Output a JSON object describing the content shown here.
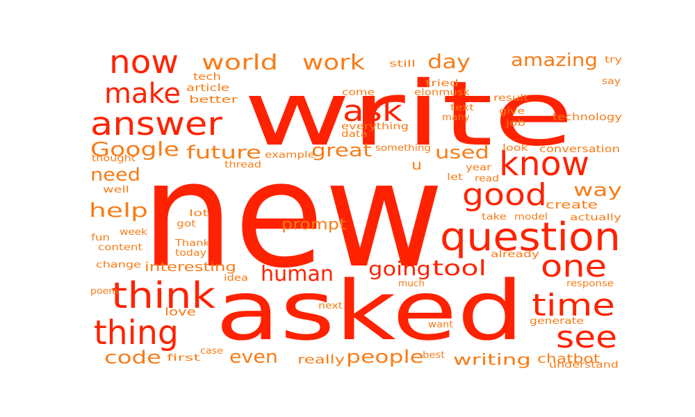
{
  "colors": {
    "background": "#ffffff",
    "red": "#ff2200",
    "orange": "#f77c17"
  },
  "words": [
    {
      "text": "new",
      "color": "red"
    },
    {
      "text": "write",
      "color": "red"
    },
    {
      "text": "asked",
      "color": "red"
    },
    {
      "text": "question",
      "color": "red"
    },
    {
      "text": "know",
      "color": "red"
    },
    {
      "text": "think",
      "color": "red"
    },
    {
      "text": "thing",
      "color": "red"
    },
    {
      "text": "time",
      "color": "red"
    },
    {
      "text": "one",
      "color": "red"
    },
    {
      "text": "see",
      "color": "red"
    },
    {
      "text": "now",
      "color": "red"
    },
    {
      "text": "answer",
      "color": "red"
    },
    {
      "text": "make",
      "color": "red"
    },
    {
      "text": "good",
      "color": "red"
    },
    {
      "text": "ask",
      "color": "red"
    },
    {
      "text": "human",
      "color": "red"
    },
    {
      "text": "tool",
      "color": "red"
    },
    {
      "text": "going",
      "color": "red"
    },
    {
      "text": "world",
      "color": "orange"
    },
    {
      "text": "work",
      "color": "orange"
    },
    {
      "text": "day",
      "color": "orange"
    },
    {
      "text": "amazing",
      "color": "orange"
    },
    {
      "text": "Google",
      "color": "orange"
    },
    {
      "text": "future",
      "color": "orange"
    },
    {
      "text": "great",
      "color": "orange"
    },
    {
      "text": "used",
      "color": "orange"
    },
    {
      "text": "need",
      "color": "orange"
    },
    {
      "text": "help",
      "color": "orange"
    },
    {
      "text": "way",
      "color": "orange"
    },
    {
      "text": "code",
      "color": "orange"
    },
    {
      "text": "even",
      "color": "orange"
    },
    {
      "text": "people",
      "color": "orange"
    },
    {
      "text": "writing",
      "color": "orange"
    },
    {
      "text": "prompt",
      "color": "orange"
    },
    {
      "text": "interesting",
      "color": "orange"
    },
    {
      "text": "chatbot",
      "color": "orange"
    },
    {
      "text": "really",
      "color": "orange"
    },
    {
      "text": "u",
      "color": "orange"
    },
    {
      "text": "create",
      "color": "orange"
    },
    {
      "text": "technology",
      "color": "orange"
    },
    {
      "text": "conversation",
      "color": "orange"
    },
    {
      "text": "better",
      "color": "orange"
    },
    {
      "text": "tech",
      "color": "orange"
    },
    {
      "text": "article",
      "color": "orange"
    },
    {
      "text": "come",
      "color": "orange"
    },
    {
      "text": "still",
      "color": "orange"
    },
    {
      "text": "try",
      "color": "orange"
    },
    {
      "text": "say",
      "color": "orange"
    },
    {
      "text": "tried",
      "color": "orange"
    },
    {
      "text": "elonmusk",
      "color": "orange"
    },
    {
      "text": "text",
      "color": "orange"
    },
    {
      "text": "many",
      "color": "orange"
    },
    {
      "text": "result",
      "color": "orange"
    },
    {
      "text": "give",
      "color": "orange"
    },
    {
      "text": "job",
      "color": "orange"
    },
    {
      "text": "everything",
      "color": "orange"
    },
    {
      "text": "data",
      "color": "orange"
    },
    {
      "text": "something",
      "color": "orange"
    },
    {
      "text": "example",
      "color": "orange"
    },
    {
      "text": "look",
      "color": "orange"
    },
    {
      "text": "thought",
      "color": "orange"
    },
    {
      "text": "thread",
      "color": "orange"
    },
    {
      "text": "year",
      "color": "orange"
    },
    {
      "text": "let",
      "color": "orange"
    },
    {
      "text": "read",
      "color": "orange"
    },
    {
      "text": "well",
      "color": "orange"
    },
    {
      "text": "lot",
      "color": "orange"
    },
    {
      "text": "got",
      "color": "orange"
    },
    {
      "text": "take",
      "color": "orange"
    },
    {
      "text": "model",
      "color": "orange"
    },
    {
      "text": "actually",
      "color": "orange"
    },
    {
      "text": "fun",
      "color": "orange"
    },
    {
      "text": "week",
      "color": "orange"
    },
    {
      "text": "content",
      "color": "orange"
    },
    {
      "text": "Thank",
      "color": "orange"
    },
    {
      "text": "today",
      "color": "orange"
    },
    {
      "text": "already",
      "color": "orange"
    },
    {
      "text": "change",
      "color": "orange"
    },
    {
      "text": "idea",
      "color": "orange"
    },
    {
      "text": "much",
      "color": "orange"
    },
    {
      "text": "response",
      "color": "orange"
    },
    {
      "text": "poem",
      "color": "orange"
    },
    {
      "text": "love",
      "color": "orange"
    },
    {
      "text": "next",
      "color": "orange"
    },
    {
      "text": "want",
      "color": "orange"
    },
    {
      "text": "generate",
      "color": "orange"
    },
    {
      "text": "first",
      "color": "orange"
    },
    {
      "text": "case",
      "color": "orange"
    },
    {
      "text": "best",
      "color": "orange"
    },
    {
      "text": "understand",
      "color": "orange"
    }
  ]
}
